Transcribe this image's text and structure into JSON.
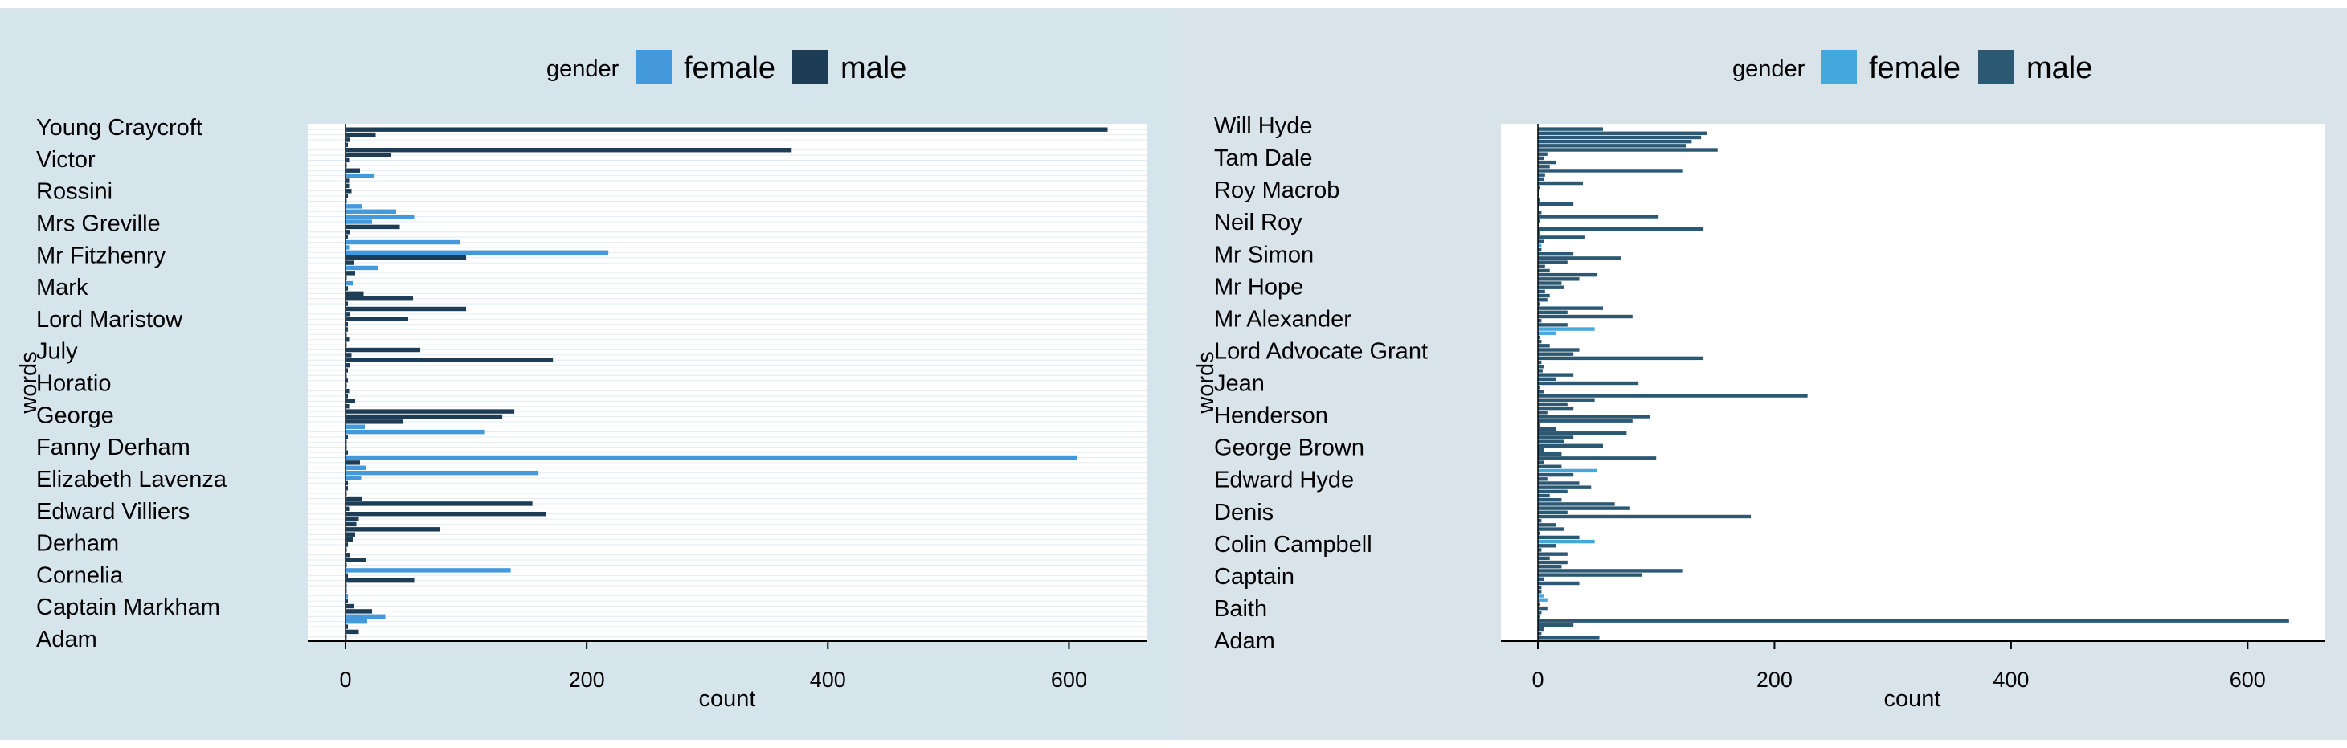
{
  "chart_data": [
    {
      "type": "bar",
      "orientation": "horizontal",
      "ylabel": "words",
      "xlabel": "count",
      "xlim": [
        -32,
        665
      ],
      "xticks": [
        0,
        200,
        400,
        600
      ],
      "legend": {
        "title": "gender",
        "position": "top",
        "entries": [
          "female",
          "male"
        ]
      },
      "colors": {
        "female": "#4499dd",
        "male": "#1c3d55",
        "grid": "#e2ecf2"
      },
      "words": [
        "Young Craycroft",
        "Victor",
        "Rossini",
        "Mrs Greville",
        "Mr Fitzhenry",
        "Mark",
        "Lord Maristow",
        "July",
        "Horatio",
        "George",
        "Fanny Derham",
        "Elizabeth Lavenza",
        "Edward Villiers",
        "Derham",
        "Cornelia",
        "Captain Markham",
        "Adam"
      ],
      "bars": [
        {
          "g": "male",
          "v": 632
        },
        {
          "g": "male",
          "v": 25
        },
        {
          "g": "male",
          "v": 4
        },
        {
          "g": "male",
          "v": 2
        },
        {
          "g": "male",
          "v": 370
        },
        {
          "g": "male",
          "v": 38
        },
        {
          "g": "male",
          "v": 3
        },
        {
          "g": "male",
          "v": 1
        },
        {
          "g": "male",
          "v": 12
        },
        {
          "g": "female",
          "v": 24
        },
        {
          "g": "male",
          "v": 3
        },
        {
          "g": "male",
          "v": 3
        },
        {
          "g": "male",
          "v": 5
        },
        {
          "g": "male",
          "v": 2
        },
        {
          "g": "male",
          "v": 1
        },
        {
          "g": "female",
          "v": 14
        },
        {
          "g": "female",
          "v": 42
        },
        {
          "g": "female",
          "v": 57
        },
        {
          "g": "female",
          "v": 22
        },
        {
          "g": "male",
          "v": 45
        },
        {
          "g": "male",
          "v": 4
        },
        {
          "g": "male",
          "v": 2
        },
        {
          "g": "female",
          "v": 95
        },
        {
          "g": "female",
          "v": 3
        },
        {
          "g": "female",
          "v": 218
        },
        {
          "g": "male",
          "v": 100
        },
        {
          "g": "male",
          "v": 7
        },
        {
          "g": "female",
          "v": 27
        },
        {
          "g": "male",
          "v": 8
        },
        {
          "g": "male",
          "v": 1
        },
        {
          "g": "female",
          "v": 6
        },
        {
          "g": "male",
          "v": 2
        },
        {
          "g": "male",
          "v": 15
        },
        {
          "g": "male",
          "v": 56
        },
        {
          "g": "male",
          "v": 2
        },
        {
          "g": "male",
          "v": 100
        },
        {
          "g": "male",
          "v": 4
        },
        {
          "g": "male",
          "v": 52
        },
        {
          "g": "male",
          "v": 2
        },
        {
          "g": "male",
          "v": 2
        },
        {
          "g": "male",
          "v": 1
        },
        {
          "g": "male",
          "v": 3
        },
        {
          "g": "male",
          "v": 1
        },
        {
          "g": "male",
          "v": 62
        },
        {
          "g": "male",
          "v": 5
        },
        {
          "g": "male",
          "v": 172
        },
        {
          "g": "male",
          "v": 4
        },
        {
          "g": "male",
          "v": 2
        },
        {
          "g": "male",
          "v": 1
        },
        {
          "g": "male",
          "v": 2
        },
        {
          "g": "male",
          "v": 1
        },
        {
          "g": "male",
          "v": 3
        },
        {
          "g": "male",
          "v": 2
        },
        {
          "g": "male",
          "v": 8
        },
        {
          "g": "male",
          "v": 3
        },
        {
          "g": "male",
          "v": 140
        },
        {
          "g": "male",
          "v": 130
        },
        {
          "g": "male",
          "v": 48
        },
        {
          "g": "female",
          "v": 16
        },
        {
          "g": "female",
          "v": 115
        },
        {
          "g": "male",
          "v": 2
        },
        {
          "g": "male",
          "v": 1
        },
        {
          "g": "male",
          "v": 1
        },
        {
          "g": "male",
          "v": 2
        },
        {
          "g": "female",
          "v": 607
        },
        {
          "g": "male",
          "v": 12
        },
        {
          "g": "female",
          "v": 17
        },
        {
          "g": "female",
          "v": 160
        },
        {
          "g": "female",
          "v": 13
        },
        {
          "g": "male",
          "v": 2
        },
        {
          "g": "male",
          "v": 2
        },
        {
          "g": "male",
          "v": 1
        },
        {
          "g": "male",
          "v": 14
        },
        {
          "g": "male",
          "v": 155
        },
        {
          "g": "male",
          "v": 3
        },
        {
          "g": "male",
          "v": 166
        },
        {
          "g": "male",
          "v": 11
        },
        {
          "g": "male",
          "v": 9
        },
        {
          "g": "male",
          "v": 78
        },
        {
          "g": "male",
          "v": 8
        },
        {
          "g": "male",
          "v": 6
        },
        {
          "g": "male",
          "v": 2
        },
        {
          "g": "male",
          "v": 1
        },
        {
          "g": "male",
          "v": 4
        },
        {
          "g": "male",
          "v": 17
        },
        {
          "g": "male",
          "v": 1
        },
        {
          "g": "female",
          "v": 137
        },
        {
          "g": "male",
          "v": 2
        },
        {
          "g": "male",
          "v": 57
        },
        {
          "g": "male",
          "v": 1
        },
        {
          "g": "male",
          "v": 1
        },
        {
          "g": "female",
          "v": 2
        },
        {
          "g": "male",
          "v": 2
        },
        {
          "g": "male",
          "v": 7
        },
        {
          "g": "male",
          "v": 22
        },
        {
          "g": "female",
          "v": 33
        },
        {
          "g": "female",
          "v": 18
        },
        {
          "g": "male",
          "v": 2
        },
        {
          "g": "male",
          "v": 11
        },
        {
          "g": "male",
          "v": 1
        }
      ]
    },
    {
      "type": "bar",
      "orientation": "horizontal",
      "ylabel": "words",
      "xlabel": "count",
      "xlim": [
        -32,
        665
      ],
      "xticks": [
        0,
        200,
        400,
        600
      ],
      "legend": {
        "title": "gender",
        "position": "top",
        "entries": [
          "female",
          "male"
        ]
      },
      "colors": {
        "female": "#44a8dc",
        "male": "#2b5873",
        "grid": "#ffffff"
      },
      "words": [
        "Will Hyde",
        "Tam Dale",
        "Roy Macrob",
        "Neil Roy",
        "Mr Simon",
        "Mr Hope",
        "Mr Alexander",
        "Lord Advocate Grant",
        "Jean",
        "Henderson",
        "George Brown",
        "Edward Hyde",
        "Denis",
        "Colin Campbell",
        "Captain",
        "Baith",
        "Adam"
      ],
      "bars": [
        {
          "g": "male",
          "v": 55
        },
        {
          "g": "male",
          "v": 143
        },
        {
          "g": "male",
          "v": 138
        },
        {
          "g": "male",
          "v": 130
        },
        {
          "g": "male",
          "v": 125
        },
        {
          "g": "male",
          "v": 152
        },
        {
          "g": "male",
          "v": 8
        },
        {
          "g": "male",
          "v": 5
        },
        {
          "g": "male",
          "v": 15
        },
        {
          "g": "male",
          "v": 10
        },
        {
          "g": "male",
          "v": 122
        },
        {
          "g": "male",
          "v": 6
        },
        {
          "g": "male",
          "v": 5
        },
        {
          "g": "male",
          "v": 38
        },
        {
          "g": "male",
          "v": 2
        },
        {
          "g": "male",
          "v": 1
        },
        {
          "g": "male",
          "v": 1
        },
        {
          "g": "male",
          "v": 2
        },
        {
          "g": "male",
          "v": 30
        },
        {
          "g": "male",
          "v": 1
        },
        {
          "g": "male",
          "v": 3
        },
        {
          "g": "male",
          "v": 102
        },
        {
          "g": "male",
          "v": 2
        },
        {
          "g": "male",
          "v": 1
        },
        {
          "g": "male",
          "v": 140
        },
        {
          "g": "male",
          "v": 2
        },
        {
          "g": "male",
          "v": 40
        },
        {
          "g": "male",
          "v": 5
        },
        {
          "g": "female",
          "v": 3
        },
        {
          "g": "male",
          "v": 3
        },
        {
          "g": "male",
          "v": 30
        },
        {
          "g": "male",
          "v": 70
        },
        {
          "g": "male",
          "v": 25
        },
        {
          "g": "male",
          "v": 6
        },
        {
          "g": "male",
          "v": 10
        },
        {
          "g": "male",
          "v": 50
        },
        {
          "g": "male",
          "v": 35
        },
        {
          "g": "male",
          "v": 20
        },
        {
          "g": "male",
          "v": 22
        },
        {
          "g": "male",
          "v": 6
        },
        {
          "g": "male",
          "v": 10
        },
        {
          "g": "male",
          "v": 8
        },
        {
          "g": "male",
          "v": 2
        },
        {
          "g": "male",
          "v": 55
        },
        {
          "g": "male",
          "v": 25
        },
        {
          "g": "male",
          "v": 80
        },
        {
          "g": "male",
          "v": 3
        },
        {
          "g": "male",
          "v": 25
        },
        {
          "g": "female",
          "v": 48
        },
        {
          "g": "female",
          "v": 15
        },
        {
          "g": "male",
          "v": 2
        },
        {
          "g": "male",
          "v": 3
        },
        {
          "g": "male",
          "v": 10
        },
        {
          "g": "male",
          "v": 35
        },
        {
          "g": "male",
          "v": 30
        },
        {
          "g": "male",
          "v": 140
        },
        {
          "g": "male",
          "v": 3
        },
        {
          "g": "male",
          "v": 5
        },
        {
          "g": "male",
          "v": 4
        },
        {
          "g": "male",
          "v": 30
        },
        {
          "g": "male",
          "v": 15
        },
        {
          "g": "male",
          "v": 85
        },
        {
          "g": "male",
          "v": 2
        },
        {
          "g": "male",
          "v": 5
        },
        {
          "g": "male",
          "v": 228
        },
        {
          "g": "male",
          "v": 48
        },
        {
          "g": "male",
          "v": 25
        },
        {
          "g": "male",
          "v": 30
        },
        {
          "g": "male",
          "v": 8
        },
        {
          "g": "male",
          "v": 95
        },
        {
          "g": "male",
          "v": 80
        },
        {
          "g": "male",
          "v": 2
        },
        {
          "g": "male",
          "v": 15
        },
        {
          "g": "male",
          "v": 75
        },
        {
          "g": "male",
          "v": 30
        },
        {
          "g": "male",
          "v": 22
        },
        {
          "g": "male",
          "v": 55
        },
        {
          "g": "male",
          "v": 5
        },
        {
          "g": "male",
          "v": 20
        },
        {
          "g": "male",
          "v": 100
        },
        {
          "g": "male",
          "v": 5
        },
        {
          "g": "male",
          "v": 20
        },
        {
          "g": "female",
          "v": 50
        },
        {
          "g": "male",
          "v": 30
        },
        {
          "g": "male",
          "v": 8
        },
        {
          "g": "male",
          "v": 35
        },
        {
          "g": "male",
          "v": 45
        },
        {
          "g": "male",
          "v": 25
        },
        {
          "g": "male",
          "v": 10
        },
        {
          "g": "male",
          "v": 20
        },
        {
          "g": "male",
          "v": 65
        },
        {
          "g": "male",
          "v": 78
        },
        {
          "g": "male",
          "v": 25
        },
        {
          "g": "male",
          "v": 180
        },
        {
          "g": "male",
          "v": 3
        },
        {
          "g": "male",
          "v": 15
        },
        {
          "g": "male",
          "v": 22
        },
        {
          "g": "male",
          "v": 2
        },
        {
          "g": "male",
          "v": 35
        },
        {
          "g": "female",
          "v": 48
        },
        {
          "g": "male",
          "v": 15
        },
        {
          "g": "male",
          "v": 3
        },
        {
          "g": "male",
          "v": 25
        },
        {
          "g": "male",
          "v": 10
        },
        {
          "g": "male",
          "v": 25
        },
        {
          "g": "male",
          "v": 20
        },
        {
          "g": "male",
          "v": 122
        },
        {
          "g": "male",
          "v": 88
        },
        {
          "g": "male",
          "v": 5
        },
        {
          "g": "male",
          "v": 35
        },
        {
          "g": "male",
          "v": 3
        },
        {
          "g": "male",
          "v": 3
        },
        {
          "g": "female",
          "v": 5
        },
        {
          "g": "female",
          "v": 8
        },
        {
          "g": "male",
          "v": 2
        },
        {
          "g": "male",
          "v": 8
        },
        {
          "g": "male",
          "v": 3
        },
        {
          "g": "male",
          "v": 2
        },
        {
          "g": "male",
          "v": 635
        },
        {
          "g": "male",
          "v": 30
        },
        {
          "g": "male",
          "v": 5
        },
        {
          "g": "male",
          "v": 3
        },
        {
          "g": "male",
          "v": 52
        }
      ]
    }
  ]
}
